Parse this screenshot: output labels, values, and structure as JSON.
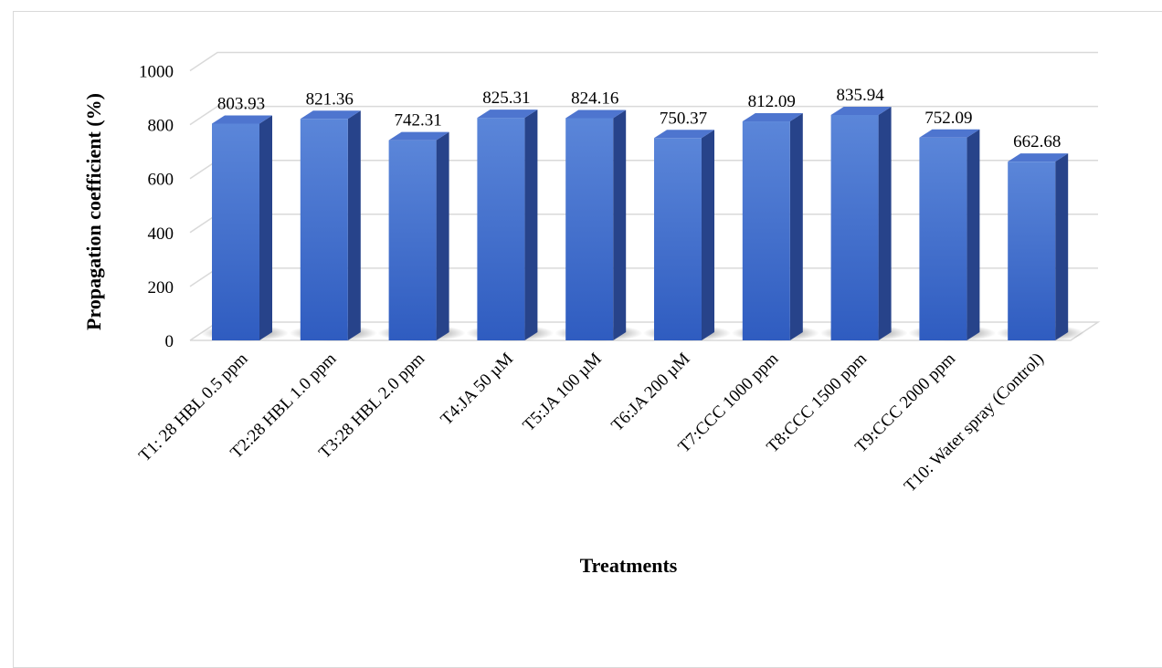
{
  "chart_data": {
    "type": "bar",
    "title": "",
    "xlabel": "Treatments",
    "ylabel": "Propagation coefficient (%)",
    "ylim": [
      0,
      1000
    ],
    "yticks": [
      0,
      200,
      400,
      600,
      800,
      1000
    ],
    "grid": true,
    "legend": "none",
    "style": "3d-column",
    "categories": [
      "T1: 28 HBL 0.5 ppm",
      "T2:28 HBL 1.0 ppm",
      "T3:28 HBL 2.0 ppm",
      "T4:JA 50 µM",
      "T5:JA 100 µM",
      "T6:JA 200 µM",
      "T7:CCC 1000 ppm",
      "T8:CCC 1500 ppm",
      "T9:CCC 2000 ppm",
      "T10: Water spray (Control)"
    ],
    "values": [
      803.93,
      821.36,
      742.31,
      825.31,
      824.16,
      750.37,
      812.09,
      835.94,
      752.09,
      662.68
    ],
    "data_labels": [
      "803.93",
      "821.36",
      "742.31",
      "825.31",
      "824.16",
      "750.37",
      "812.09",
      "835.94",
      "752.09",
      "662.68"
    ],
    "colors": {
      "bar_front": "#3a66c8",
      "bar_front_light": "#5b86d9",
      "bar_side": "#27438a",
      "bar_top": "#4e75cf",
      "grid": "#d9d9d9",
      "text": "#000000"
    }
  }
}
